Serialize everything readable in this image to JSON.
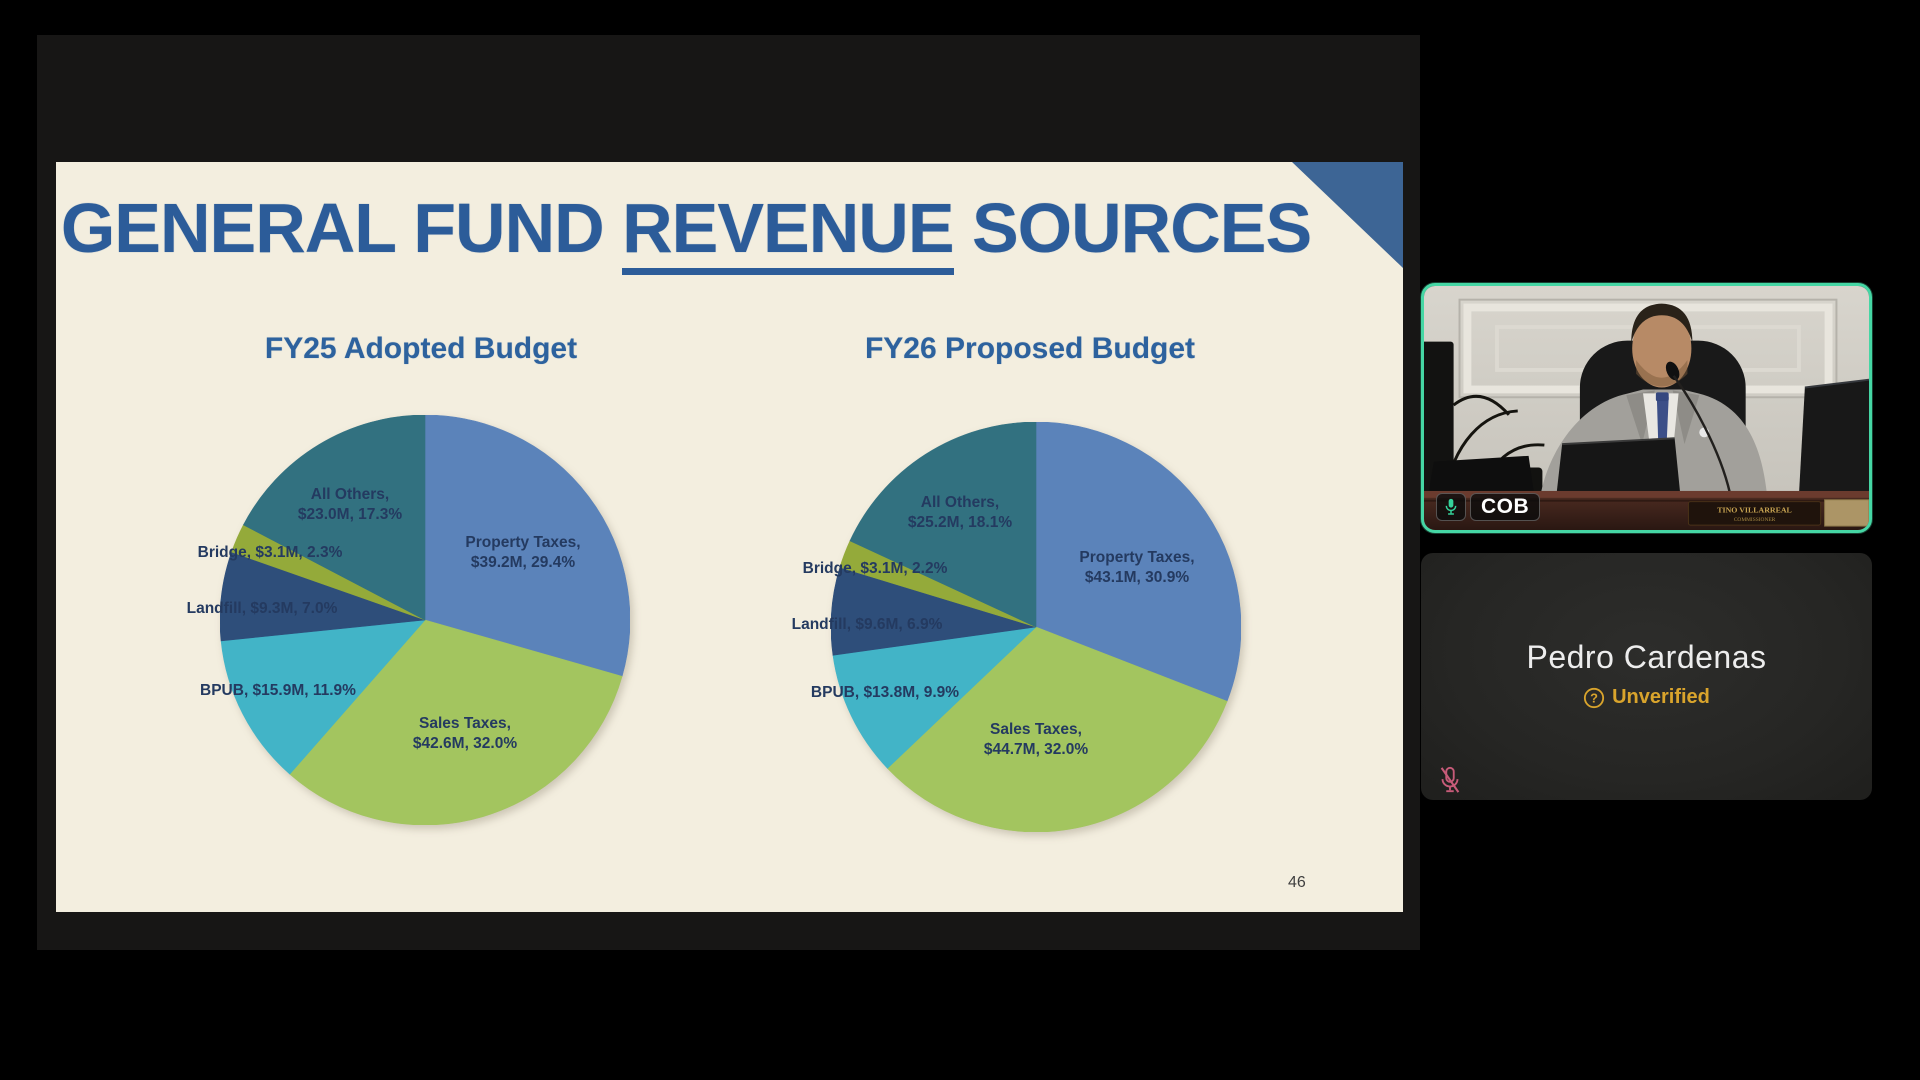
{
  "slide": {
    "title_prefix": "GENERAL FUND ",
    "title_underlined": "REVENUE",
    "title_suffix": " SOURCES",
    "page_number": "46"
  },
  "chart_data": [
    {
      "type": "pie",
      "title": "FY25 Adopted Budget",
      "legend_position": "none",
      "slices": [
        {
          "label": "Property Taxes",
          "amount": "$39.2M",
          "value_millions": 39.2,
          "pct": "29.4%",
          "color": "#5b83ba",
          "label_style": "stacked"
        },
        {
          "label": "Sales Taxes",
          "amount": "$42.6M",
          "value_millions": 42.6,
          "pct": "32.0%",
          "color": "#a3c55f",
          "label_style": "stacked"
        },
        {
          "label": "BPUB",
          "amount": "$15.9M",
          "value_millions": 15.9,
          "pct": "11.9%",
          "color": "#42b4c7",
          "label_style": "inline"
        },
        {
          "label": "Landfill",
          "amount": "$9.3M",
          "value_millions": 9.3,
          "pct": "7.0%",
          "color": "#2e4e7a",
          "label_style": "inline"
        },
        {
          "label": "Bridge",
          "amount": "$3.1M",
          "value_millions": 3.1,
          "pct": "2.3%",
          "color": "#94aa3a",
          "label_style": "inline"
        },
        {
          "label": "All Others",
          "amount": "$23.0M",
          "value_millions": 23.0,
          "pct": "17.3%",
          "color": "#327180",
          "label_style": "stacked"
        }
      ]
    },
    {
      "type": "pie",
      "title": "FY26 Proposed Budget",
      "legend_position": "none",
      "slices": [
        {
          "label": "Property Taxes",
          "amount": "$43.1M",
          "value_millions": 43.1,
          "pct": "30.9%",
          "color": "#5b83ba",
          "label_style": "stacked"
        },
        {
          "label": "Sales Taxes",
          "amount": "$44.7M",
          "value_millions": 44.7,
          "pct": "32.0%",
          "color": "#a3c55f",
          "label_style": "stacked"
        },
        {
          "label": "BPUB",
          "amount": "$13.8M",
          "value_millions": 13.8,
          "pct": "9.9%",
          "color": "#42b4c7",
          "label_style": "inline"
        },
        {
          "label": "Landfill",
          "amount": "$9.6M",
          "value_millions": 9.6,
          "pct": "6.9%",
          "color": "#2e4e7a",
          "label_style": "inline"
        },
        {
          "label": "Bridge",
          "amount": "$3.1M",
          "value_millions": 3.1,
          "pct": "2.2%",
          "color": "#94aa3a",
          "label_style": "inline"
        },
        {
          "label": "All Others",
          "amount": "$25.2M",
          "value_millions": 25.2,
          "pct": "18.1%",
          "color": "#327180",
          "label_style": "stacked"
        }
      ]
    }
  ],
  "meeting": {
    "participants": [
      {
        "tile": "cob",
        "badge_label": "COB",
        "nameplate_line1": "TINO VILLARREAL",
        "nameplate_line2": "COMMISSIONER",
        "active_speaker": true,
        "muted": false
      },
      {
        "tile": "pedro",
        "display_name": "Pedro Cardenas",
        "status_label": "Unverified",
        "muted": true
      }
    ]
  },
  "icons": {
    "cob_badge": "mic-icon",
    "pedro_muted": "mic-off-icon",
    "unverified": "question-circle-icon"
  },
  "colors": {
    "slide_background": "#f3eedf",
    "title_blue": "#2c5c99",
    "label_navy": "#243a60",
    "corner_triangle": "#3d6595",
    "active_speaker_border": "#45d6a4",
    "unverified_amber": "#d9a42c",
    "muted_mic_pink": "#c75b79"
  }
}
